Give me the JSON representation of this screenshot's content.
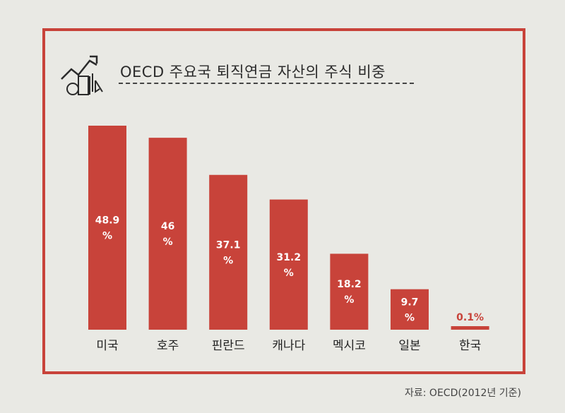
{
  "chart_data": {
    "type": "bar",
    "title": "OECD 주요국 퇴직연금 자산의 주식 비중",
    "categories": [
      "미국",
      "호주",
      "핀란드",
      "캐나다",
      "멕시코",
      "일본",
      "한국"
    ],
    "values": [
      48.9,
      46,
      37.1,
      31.2,
      18.2,
      9.7,
      0.1
    ],
    "data_labels": [
      "48.9%",
      "46%",
      "37.1%",
      "31.2%",
      "18.2%",
      "9.7%",
      "0.1%"
    ],
    "unit": "%",
    "ylim": [
      0,
      48.9
    ],
    "grid": false,
    "bar_color": "#c8433a",
    "source": "자료: OECD(2012년 기준)"
  },
  "colors": {
    "accent": "#c8433a",
    "background": "#e9e9e4",
    "frame": "#c8433a"
  },
  "icons": {
    "header_icon": "chart-growth-icon"
  }
}
